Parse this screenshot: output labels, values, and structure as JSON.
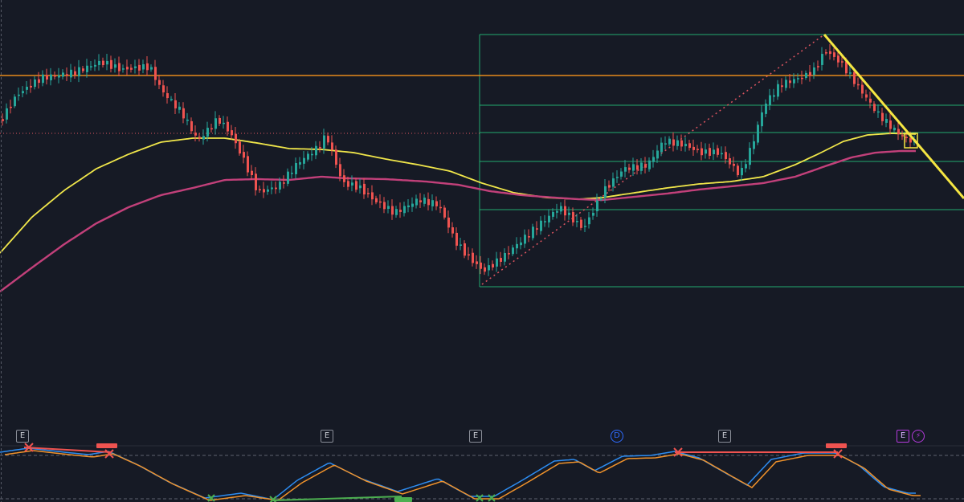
{
  "chart_data": {
    "type": "candlestick",
    "title": "",
    "xlabel": "",
    "ylabel": "",
    "price_panel": {
      "moving_averages": [
        {
          "color": "#f0e64a"
        },
        {
          "color": "#c2407a"
        }
      ],
      "horizontal_level": {
        "color": "#e5891c"
      },
      "last_price_line": {
        "color": "#e05561",
        "style": "dotted"
      },
      "fib_levels_color": "#22ab70",
      "trendline_color": "#f5e642",
      "candle_colors": {
        "up": "#26a69a",
        "down": "#ef5350"
      }
    },
    "oscillator_panel": {
      "lines": [
        {
          "color": "#2d8cf0"
        },
        {
          "color": "#f0922b"
        }
      ],
      "dashed_levels_color": "#5d6170"
    }
  },
  "event_markers": [
    {
      "label": "E",
      "kind": "earnings"
    },
    {
      "label": "E",
      "kind": "earnings"
    },
    {
      "label": "E",
      "kind": "earnings"
    },
    {
      "label": "D",
      "kind": "dividend"
    },
    {
      "label": "E",
      "kind": "earnings"
    },
    {
      "label": "E",
      "kind": "earnings-upcoming"
    },
    {
      "label": "⚡",
      "kind": "flash"
    }
  ]
}
